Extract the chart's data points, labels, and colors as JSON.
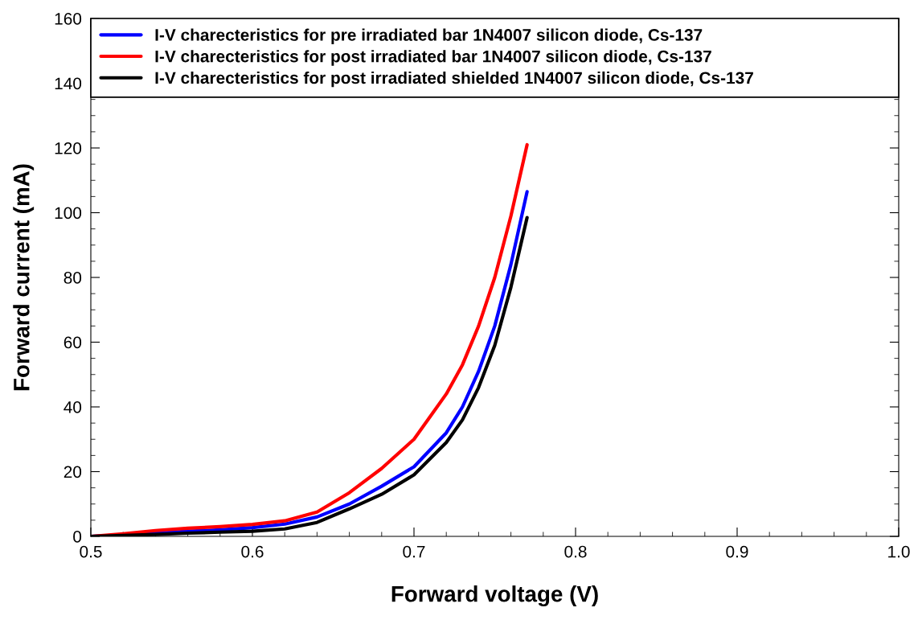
{
  "chart_data": {
    "type": "line",
    "xlabel": "Forward voltage (V)",
    "ylabel": "Forward current (mA)",
    "x": [
      0.5,
      0.52,
      0.54,
      0.56,
      0.58,
      0.6,
      0.62,
      0.64,
      0.66,
      0.68,
      0.7,
      0.72,
      0.73,
      0.74,
      0.75,
      0.76,
      0.77
    ],
    "series": [
      {
        "name": "I-V charecteristics for pre irradiated bar 1N4007 silicon diode, Cs-137",
        "color": "#0000ff",
        "x": [
          0.5,
          0.54,
          0.56,
          0.58,
          0.6,
          0.62,
          0.64,
          0.66,
          0.68,
          0.7,
          0.72,
          0.73,
          0.74,
          0.75,
          0.76,
          0.77
        ],
        "values": [
          0,
          1,
          1.6,
          2,
          2.7,
          3.8,
          6,
          10,
          15.5,
          21.5,
          32,
          40,
          51,
          65,
          84,
          106.5
        ]
      },
      {
        "name": "I-V charecteristics for post irradiated bar 1N4007 silicon diode, Cs-137",
        "color": "#ff0000",
        "values": [
          0,
          0.8,
          1.8,
          2.5,
          3,
          3.7,
          4.8,
          7.5,
          13.5,
          21,
          30,
          44,
          53,
          65,
          80,
          99,
          121
        ]
      },
      {
        "name": "I-V charecteristics for post irradiated shielded 1N4007 silicon diode, Cs-137",
        "color": "#000000",
        "values": [
          0,
          0.3,
          0.6,
          1,
          1.3,
          1.6,
          2.3,
          4.3,
          8.5,
          13,
          19,
          29,
          36,
          46,
          59,
          77,
          98.5
        ]
      }
    ],
    "xlim": [
      0.5,
      1.0
    ],
    "xticks": [
      {
        "value": 0.5,
        "label": "0.5"
      },
      {
        "value": 0.6,
        "label": "0.6"
      },
      {
        "value": 0.7,
        "label": "0.7"
      },
      {
        "value": 0.8,
        "label": "0.8"
      },
      {
        "value": 0.9,
        "label": "0.9"
      },
      {
        "value": 1.0,
        "label": "1.0"
      }
    ],
    "ylim": [
      0,
      160
    ],
    "yticks": [
      0,
      20,
      40,
      60,
      80,
      100,
      120,
      140,
      160
    ],
    "grid": false,
    "legend": "top",
    "marker": "none",
    "line_style": "solid"
  }
}
